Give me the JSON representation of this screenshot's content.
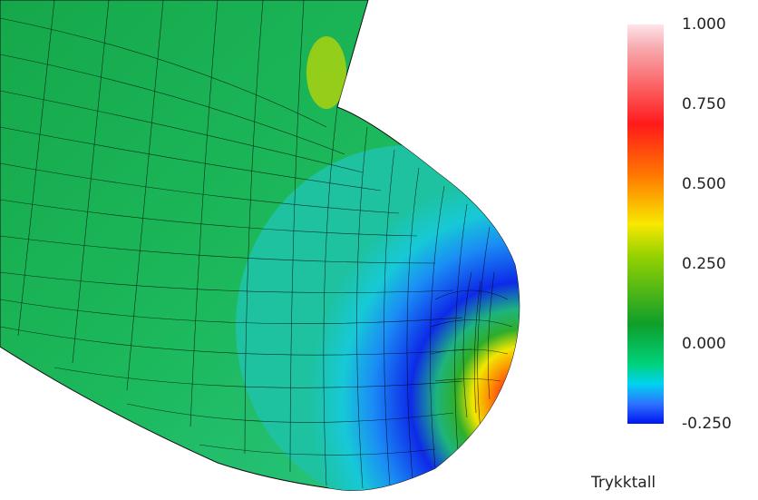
{
  "colorbar": {
    "title": "Trykktall",
    "ticks": [
      "1.000",
      "0.750",
      "0.500",
      "0.250",
      "0.000",
      "-0.250"
    ],
    "range": [
      -0.25,
      1.0
    ],
    "colors": [
      "#fce4ea",
      "#ff1a1a",
      "#ff7a00",
      "#f8e800",
      "#0f9e2a",
      "#00d27a",
      "#00d3f0",
      "#0015f0"
    ]
  }
}
